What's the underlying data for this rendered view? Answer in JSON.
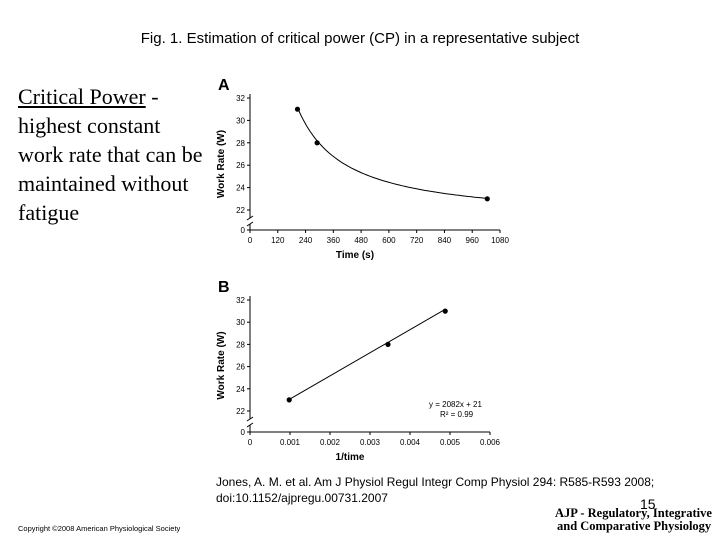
{
  "slide": {
    "title": "Fig. 1. Estimation of critical power (CP) in a representative subject",
    "definition_term": "Critical Power",
    "definition_rest": " - highest constant work rate that can be maintained without fatigue",
    "citation_line1": "Jones, A. M. et al. Am J Physiol Regul Integr Comp Physiol 294: R585-R593 2008;",
    "citation_line2": "doi:10.1152/ajpregu.00731.2007",
    "page_number": "15",
    "copyright": "Copyright ©2008 American Physiological Society",
    "journal_line1": "AJP - Regulatory, Integrative",
    "journal_line2": "and Comparative Physiology"
  },
  "chart_data": [
    {
      "type": "scatter",
      "panel_label": "A",
      "xlabel": "Time (s)",
      "ylabel": "Work Rate (W)",
      "x_ticks": [
        "0",
        "120",
        "240",
        "360",
        "480",
        "600",
        "720",
        "840",
        "960",
        "1080"
      ],
      "y_ticks": [
        "0",
        "22",
        "24",
        "26",
        "28",
        "30",
        "32"
      ],
      "xlim": [
        0,
        1080
      ],
      "ylim": [
        22,
        32
      ],
      "axis_break": true,
      "points": [
        {
          "x": 205,
          "y": 31
        },
        {
          "x": 290,
          "y": 28
        },
        {
          "x": 1025,
          "y": 23
        }
      ],
      "fit": "hyperbolic",
      "fit_curve": {
        "CP": 21,
        "Wprime": 2082
      }
    },
    {
      "type": "scatter",
      "panel_label": "B",
      "xlabel": "1/time",
      "ylabel": "Work Rate (W)",
      "x_ticks": [
        "0",
        "0.001",
        "0.002",
        "0.003",
        "0.004",
        "0.005",
        "0.006"
      ],
      "y_ticks": [
        "0",
        "22",
        "24",
        "26",
        "28",
        "30",
        "32"
      ],
      "xlim": [
        0,
        0.006
      ],
      "ylim": [
        22,
        32
      ],
      "axis_break": true,
      "points": [
        {
          "x": 0.00098,
          "y": 23
        },
        {
          "x": 0.00345,
          "y": 28
        },
        {
          "x": 0.00488,
          "y": 31
        }
      ],
      "fit": "linear",
      "fit_line": {
        "slope": 2082,
        "intercept": 21
      },
      "annotation_line1": "y = 2082x + 21",
      "annotation_line2": "R² = 0.99"
    }
  ]
}
